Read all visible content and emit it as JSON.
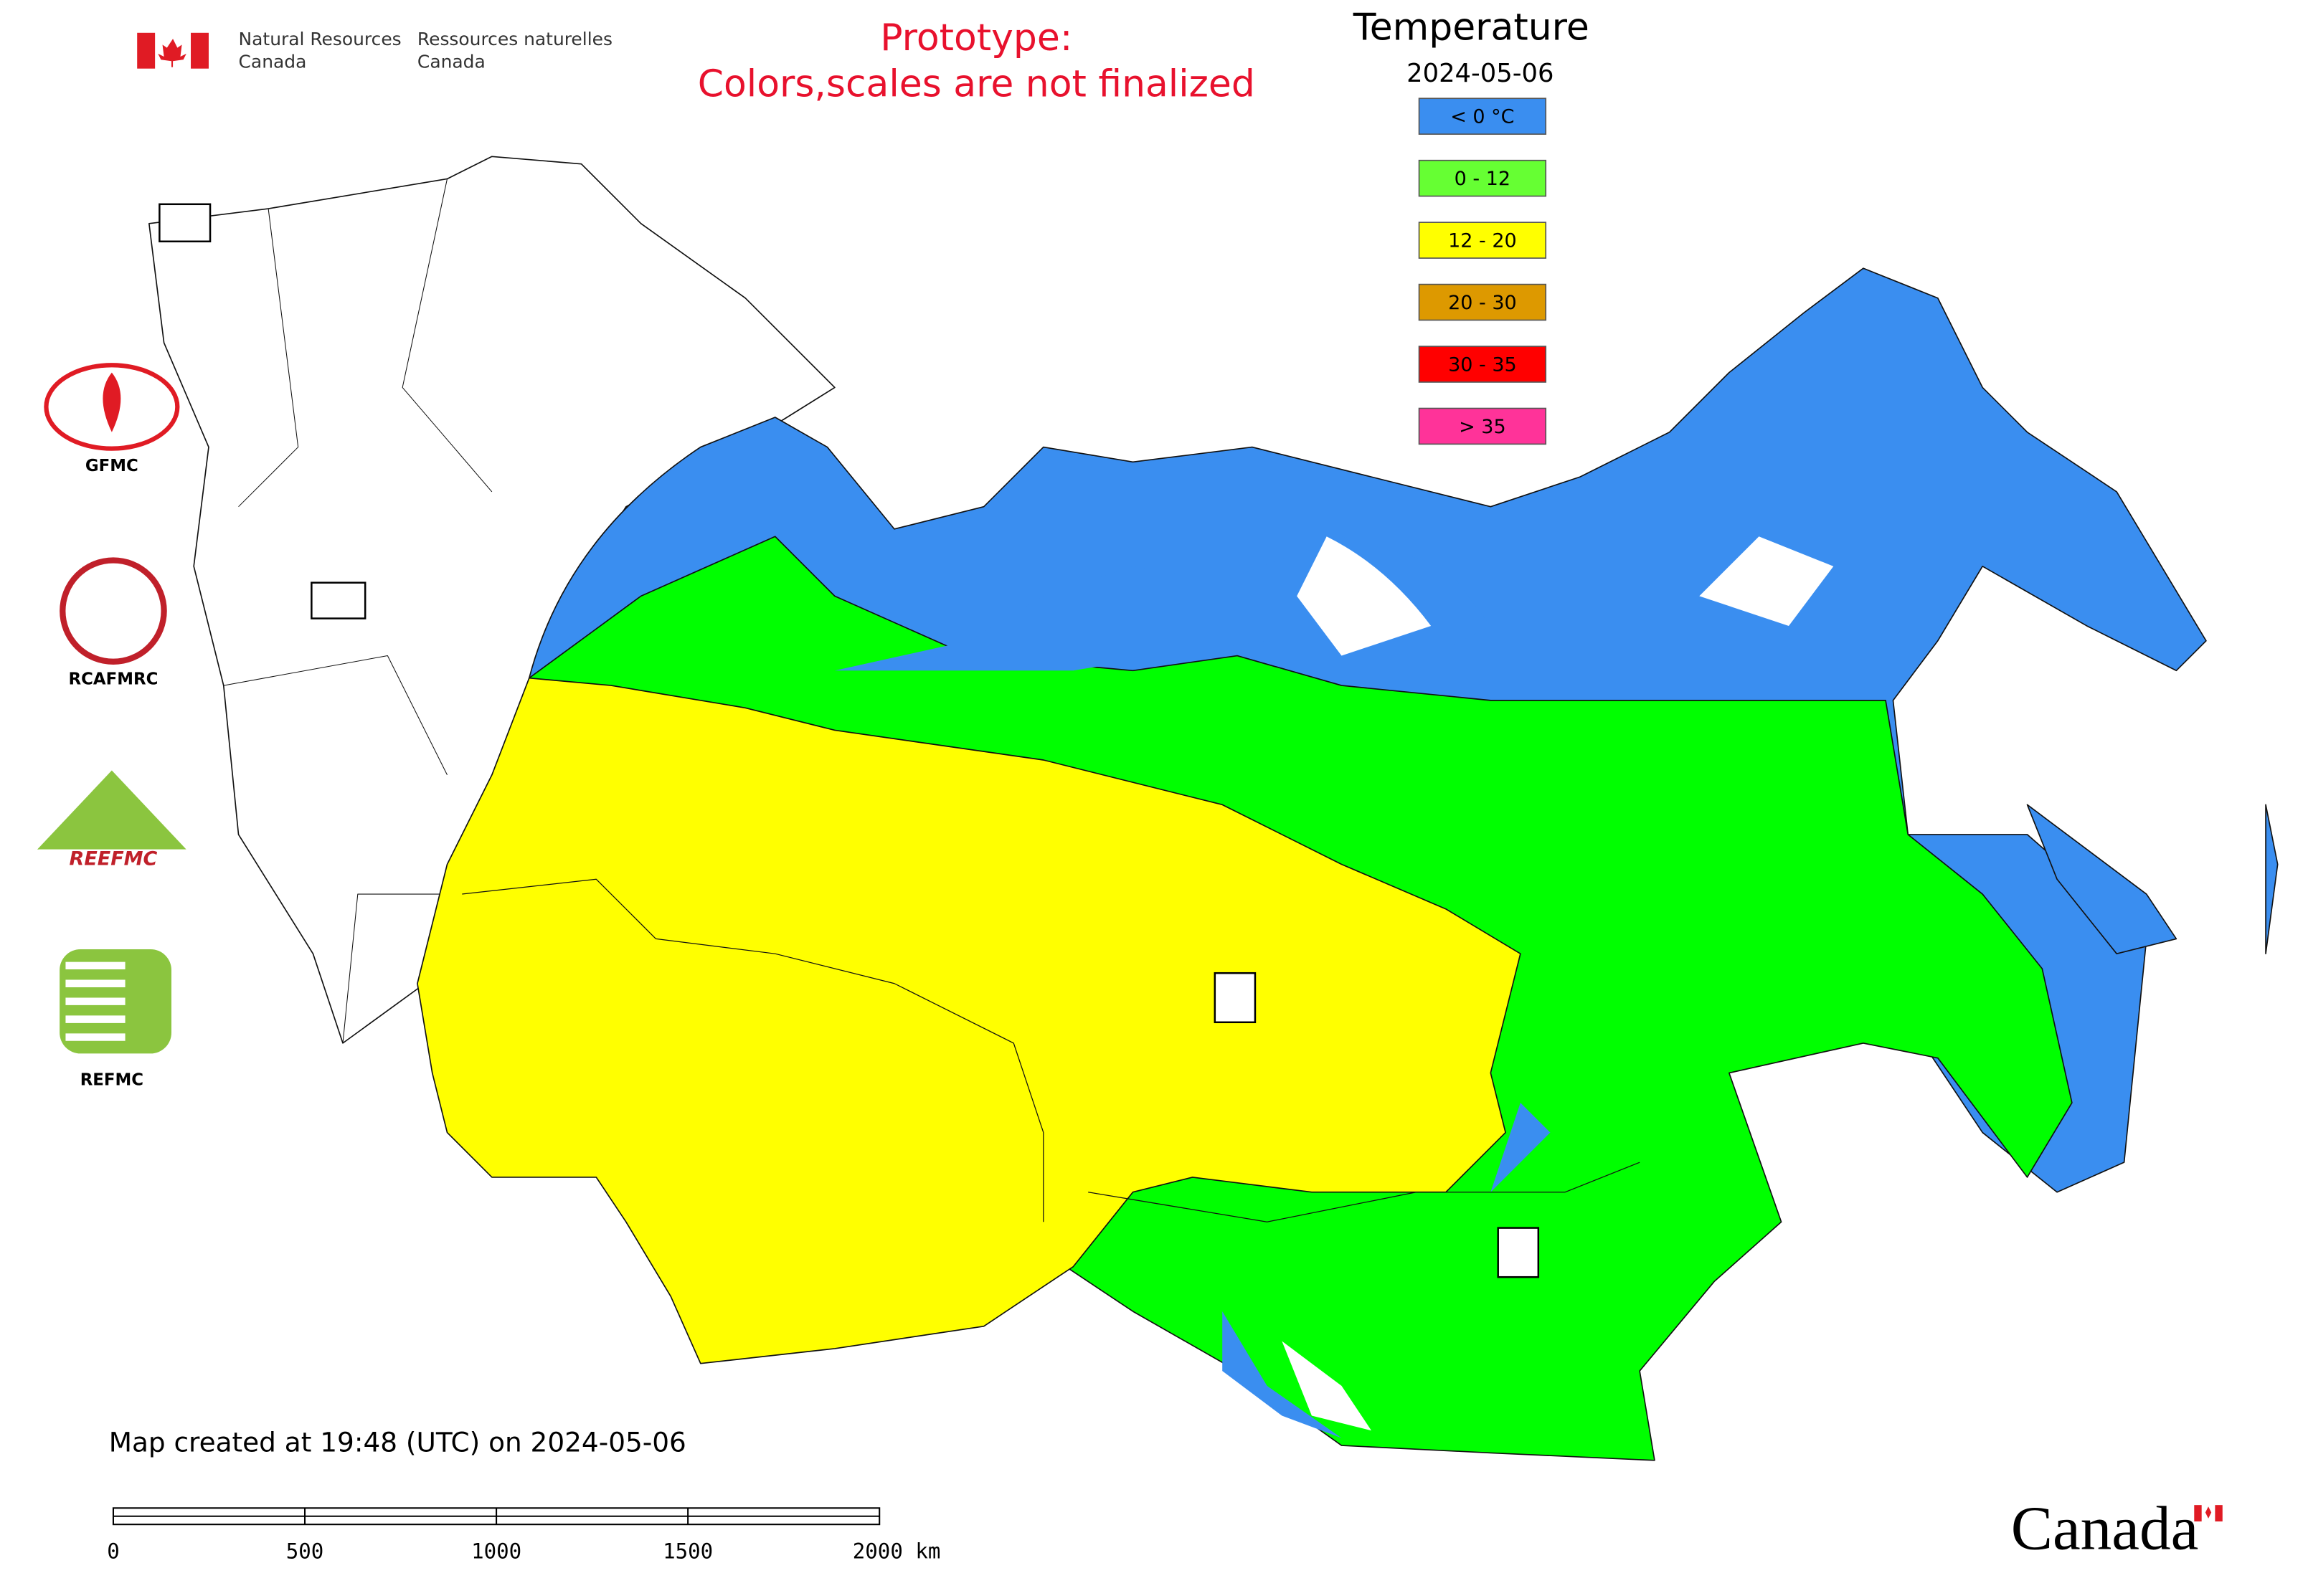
{
  "header": {
    "agency_en": [
      "Natural Resources",
      "Canada"
    ],
    "agency_fr": [
      "Ressources naturelles",
      "Canada"
    ],
    "notice": [
      "Prototype:",
      "Colors,scales are not finalized"
    ]
  },
  "legend": {
    "title": "Temperature",
    "date": "2024-05-06",
    "items": [
      {
        "label": "< 0 °C",
        "color": "#3a8ef0"
      },
      {
        "label": "0 - 12",
        "color": "#66ff33"
      },
      {
        "label": "12 - 20",
        "color": "#ffff00"
      },
      {
        "label": "20 - 30",
        "color": "#dd9900"
      },
      {
        "label": "30 - 35",
        "color": "#ff0000"
      },
      {
        "label": "> 35",
        "color": "#ff3399"
      }
    ]
  },
  "logos": [
    "GFMC",
    "RCAFMRC",
    "REEFMC",
    "REFMC"
  ],
  "footer": {
    "created": "Map created at 19:48 (UTC) on 2024-05-06",
    "wordmark": "Canada"
  },
  "scale_bar": {
    "labels": [
      "0",
      "500",
      "1000",
      "1500",
      "2000 km"
    ]
  }
}
